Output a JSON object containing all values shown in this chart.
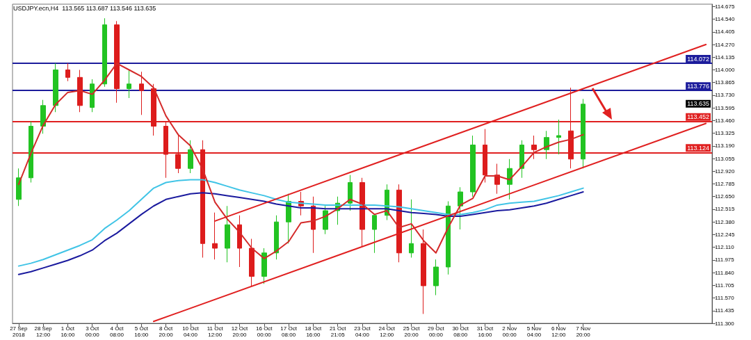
{
  "chart_data": {
    "type": "candlestick",
    "title": "USDJPY.ecn,H4  113.565 113.687 113.546 113.635",
    "categories": [
      "27 Sep 2018",
      null,
      "28 Sep 12:00",
      null,
      "1 Oct 16:00",
      null,
      "3 Oct 00:00",
      null,
      "4 Oct 08:00",
      null,
      "5 Oct 16:00",
      null,
      "8 Oct 20:00",
      null,
      "10 Oct 04:00",
      null,
      "11 Oct 12:00",
      null,
      "12 Oct 20:00",
      null,
      "16 Oct 00:00",
      null,
      "17 Oct 08:00",
      null,
      "18 Oct 16:00",
      null,
      "21 Oct 21:05",
      null,
      "23 Oct 04:00",
      null,
      "24 Oct 12:00",
      null,
      "25 Oct 20:00",
      null,
      "29 Oct 00:00",
      null,
      "30 Oct 08:00",
      null,
      "31 Oct 16:00",
      null,
      "2 Nov 00:00",
      null,
      "5 Nov 04:00",
      null,
      "6 Nov 12:00",
      null,
      "7 Nov 20:00",
      null,
      null,
      null,
      null,
      null,
      null,
      null,
      null,
      null,
      null
    ],
    "ohlc": [
      [
        112.62,
        112.95,
        112.55,
        112.85
      ],
      [
        112.85,
        113.45,
        112.8,
        113.4
      ],
      [
        113.4,
        113.68,
        113.32,
        113.62
      ],
      [
        113.62,
        114.07,
        113.55,
        114.0
      ],
      [
        114.0,
        114.07,
        113.88,
        113.92
      ],
      [
        113.92,
        114.0,
        113.55,
        113.62
      ],
      [
        113.6,
        113.9,
        113.55,
        113.85
      ],
      [
        113.85,
        114.55,
        113.82,
        114.48
      ],
      [
        114.48,
        114.52,
        113.65,
        113.8
      ],
      [
        113.8,
        114.0,
        113.7,
        113.85
      ],
      [
        113.85,
        113.98,
        113.52,
        113.78
      ],
      [
        113.8,
        113.85,
        113.3,
        113.4
      ],
      [
        113.4,
        113.45,
        112.85,
        113.1
      ],
      [
        113.1,
        113.3,
        112.9,
        112.95
      ],
      [
        112.95,
        113.25,
        112.9,
        113.15
      ],
      [
        113.15,
        113.25,
        112.0,
        112.15
      ],
      [
        112.15,
        112.48,
        111.98,
        112.1
      ],
      [
        112.1,
        112.55,
        111.95,
        112.35
      ],
      [
        112.35,
        112.45,
        111.9,
        112.1
      ],
      [
        112.1,
        112.2,
        111.7,
        111.8
      ],
      [
        111.8,
        112.1,
        111.72,
        112.05
      ],
      [
        112.05,
        112.45,
        111.98,
        112.38
      ],
      [
        112.38,
        112.68,
        112.15,
        112.6
      ],
      [
        112.6,
        112.7,
        112.45,
        112.55
      ],
      [
        112.55,
        112.65,
        112.05,
        112.3
      ],
      [
        112.3,
        112.55,
        112.25,
        112.5
      ],
      [
        112.5,
        112.65,
        112.35,
        112.58
      ],
      [
        112.58,
        112.88,
        112.5,
        112.8
      ],
      [
        112.8,
        112.85,
        112.12,
        112.3
      ],
      [
        112.3,
        112.45,
        112.05,
        112.45
      ],
      [
        112.45,
        112.78,
        112.4,
        112.72
      ],
      [
        112.72,
        112.78,
        111.95,
        112.05
      ],
      [
        112.05,
        112.62,
        112.0,
        112.15
      ],
      [
        112.15,
        112.3,
        111.4,
        111.7
      ],
      [
        111.7,
        111.98,
        111.6,
        111.9
      ],
      [
        111.9,
        112.6,
        111.82,
        112.55
      ],
      [
        112.55,
        112.75,
        112.3,
        112.7
      ],
      [
        112.7,
        113.3,
        112.65,
        113.2
      ],
      [
        113.2,
        113.37,
        112.8,
        112.88
      ],
      [
        112.88,
        113.0,
        112.68,
        112.78
      ],
      [
        112.78,
        113.05,
        112.62,
        112.95
      ],
      [
        112.95,
        113.25,
        112.85,
        113.2
      ],
      [
        113.2,
        113.3,
        113.05,
        113.15
      ],
      [
        113.15,
        113.35,
        113.05,
        113.28
      ],
      [
        113.28,
        113.47,
        113.1,
        113.3
      ],
      [
        113.35,
        113.81,
        112.95,
        113.05
      ],
      [
        113.05,
        113.69,
        112.95,
        113.635
      ],
      null,
      null,
      null,
      null,
      null,
      null,
      null,
      null,
      null,
      null
    ],
    "colors": [
      "#22c322",
      "#22c322",
      "#22c322",
      "#22c322",
      "#dd1c1c",
      "#dd1c1c",
      "#22c322",
      "#22c322",
      "#dd1c1c",
      "#22c322",
      "#dd1c1c",
      "#dd1c1c",
      "#dd1c1c",
      "#dd1c1c",
      "#22c322",
      "#dd1c1c",
      "#dd1c1c",
      "#22c322",
      "#dd1c1c",
      "#dd1c1c",
      "#22c322",
      "#22c322",
      "#22c322",
      "#dd1c1c",
      "#dd1c1c",
      "#22c322",
      "#22c322",
      "#22c322",
      "#dd1c1c",
      "#22c322",
      "#22c322",
      "#dd1c1c",
      "#22c322",
      "#dd1c1c",
      "#22c322",
      "#22c322",
      "#22c322",
      "#22c322",
      "#dd1c1c",
      "#dd1c1c",
      "#22c322",
      "#22c322",
      "#dd1c1c",
      "#22c322",
      "#22c322",
      "#dd1c1c",
      "#22c322",
      null,
      null,
      null,
      null,
      null,
      null,
      null,
      null,
      null,
      null
    ],
    "series": [
      {
        "type": "line",
        "color": "#40c4e6",
        "values": [
          111.91,
          111.94,
          111.98,
          112.03,
          112.08,
          112.13,
          112.19,
          112.31,
          112.4,
          112.5,
          112.62,
          112.74,
          112.8,
          112.82,
          112.83,
          112.83,
          112.8,
          112.76,
          112.72,
          112.69,
          112.66,
          112.62,
          112.59,
          112.58,
          112.57,
          112.56,
          112.56,
          112.56,
          112.56,
          112.56,
          112.55,
          112.54,
          112.52,
          112.5,
          112.48,
          112.46,
          112.46,
          112.48,
          112.51,
          112.56,
          112.58,
          112.59,
          112.6,
          112.63,
          112.66,
          112.7,
          112.74,
          null,
          null,
          null,
          null,
          null,
          null,
          null,
          null,
          null,
          null
        ]
      },
      {
        "type": "line",
        "color": "#1a1a9e",
        "values": [
          111.82,
          111.85,
          111.89,
          111.93,
          111.97,
          112.02,
          112.08,
          112.18,
          112.26,
          112.36,
          112.46,
          112.55,
          112.62,
          112.65,
          112.68,
          112.69,
          112.68,
          112.66,
          112.64,
          112.62,
          112.6,
          112.57,
          112.55,
          112.53,
          112.53,
          112.52,
          112.52,
          112.52,
          112.52,
          112.52,
          112.52,
          112.5,
          112.48,
          112.47,
          112.46,
          112.44,
          112.44,
          112.46,
          112.48,
          112.5,
          112.51,
          112.53,
          112.55,
          112.58,
          112.62,
          112.66,
          112.7,
          null,
          null,
          null,
          null,
          null,
          null,
          null,
          null,
          null,
          null
        ]
      },
      {
        "type": "line",
        "color": "#d42a2a",
        "values": [
          112.78,
          113.11,
          113.41,
          113.63,
          113.76,
          113.78,
          113.74,
          113.89,
          114.07,
          114.0,
          113.93,
          113.81,
          113.51,
          113.31,
          113.19,
          112.94,
          112.59,
          112.41,
          112.27,
          112.1,
          111.99,
          112.07,
          112.17,
          112.37,
          112.39,
          112.44,
          112.52,
          112.62,
          112.57,
          112.46,
          112.5,
          112.32,
          112.36,
          112.18,
          112.05,
          112.32,
          112.56,
          112.63,
          112.87,
          112.87,
          112.83,
          112.97,
          113.12,
          113.18,
          113.23,
          113.26,
          113.31,
          null,
          null,
          null,
          null,
          null,
          null,
          null,
          null,
          null,
          null
        ]
      },
      {
        "type": "line",
        "color": "#e02020",
        "values": [
          null,
          null,
          null,
          null,
          null,
          null,
          null,
          null,
          null,
          null,
          null,
          null,
          null,
          null,
          null,
          null,
          112.39,
          null,
          null,
          null,
          null,
          null,
          null,
          null,
          null,
          null,
          null,
          null,
          null,
          null,
          null,
          null,
          null,
          null,
          null,
          null,
          null,
          null,
          null,
          null,
          null,
          null,
          null,
          null,
          null,
          null,
          null,
          null,
          null,
          null,
          null,
          null,
          null,
          null,
          null,
          null,
          114.27
        ]
      },
      {
        "type": "line",
        "color": "#e02020",
        "values": [
          null,
          null,
          null,
          null,
          null,
          null,
          null,
          null,
          null,
          null,
          null,
          111.32,
          null,
          null,
          null,
          null,
          null,
          null,
          null,
          null,
          null,
          null,
          null,
          null,
          null,
          null,
          null,
          null,
          null,
          null,
          null,
          null,
          null,
          null,
          null,
          null,
          null,
          null,
          null,
          null,
          null,
          null,
          null,
          null,
          null,
          null,
          null,
          null,
          null,
          null,
          null,
          null,
          null,
          null,
          null,
          null,
          113.43
        ]
      }
    ],
    "ylim": [
      111.3,
      114.7
    ],
    "yticks": [
      {
        "value": 111.3,
        "label": "111.300"
      },
      {
        "value": 111.435,
        "label": "111.435"
      },
      {
        "value": 111.57,
        "label": "111.570"
      },
      {
        "value": 111.705,
        "label": "111.705"
      },
      {
        "value": 111.84,
        "label": "111.840"
      },
      {
        "value": 111.975,
        "label": "111.975"
      },
      {
        "value": 112.11,
        "label": "112.110"
      },
      {
        "value": 112.245,
        "label": "112.245"
      },
      {
        "value": 112.38,
        "label": "112.380"
      },
      {
        "value": 112.515,
        "label": "112.515"
      },
      {
        "value": 112.65,
        "label": "112.650"
      },
      {
        "value": 112.785,
        "label": "112.785"
      },
      {
        "value": 112.92,
        "label": "112.920"
      },
      {
        "value": 113.055,
        "label": "113.055"
      },
      {
        "value": 113.19,
        "label": "113.190"
      },
      {
        "value": 113.325,
        "label": "113.325"
      },
      {
        "value": 113.46,
        "label": "113.460"
      },
      {
        "value": 113.595,
        "label": "113.595"
      },
      {
        "value": 113.73,
        "label": "113.730"
      },
      {
        "value": 113.865,
        "label": "113.865"
      },
      {
        "value": 114.0,
        "label": "114.000"
      },
      {
        "value": 114.135,
        "label": "114.135"
      },
      {
        "value": 114.27,
        "label": "114.270"
      },
      {
        "value": 114.405,
        "label": "114.405"
      },
      {
        "value": 114.54,
        "label": "114.540"
      },
      {
        "value": 114.675,
        "label": "114.675"
      }
    ],
    "ref_lines": [
      {
        "axis": "y",
        "value": 114.072,
        "label": "114.072",
        "color": "#1c1c9c"
      },
      {
        "axis": "y",
        "value": 113.776,
        "label": "113.776",
        "color": "#1c1c9c"
      },
      {
        "axis": "y",
        "value": 113.452,
        "label": "113.452",
        "color": "#e02020"
      },
      {
        "axis": "y",
        "value": 113.124,
        "label": "113.124",
        "color": "#e02020"
      }
    ],
    "annotations": [
      {
        "text": "113.635",
        "y": 113.635
      }
    ],
    "grid": false
  }
}
